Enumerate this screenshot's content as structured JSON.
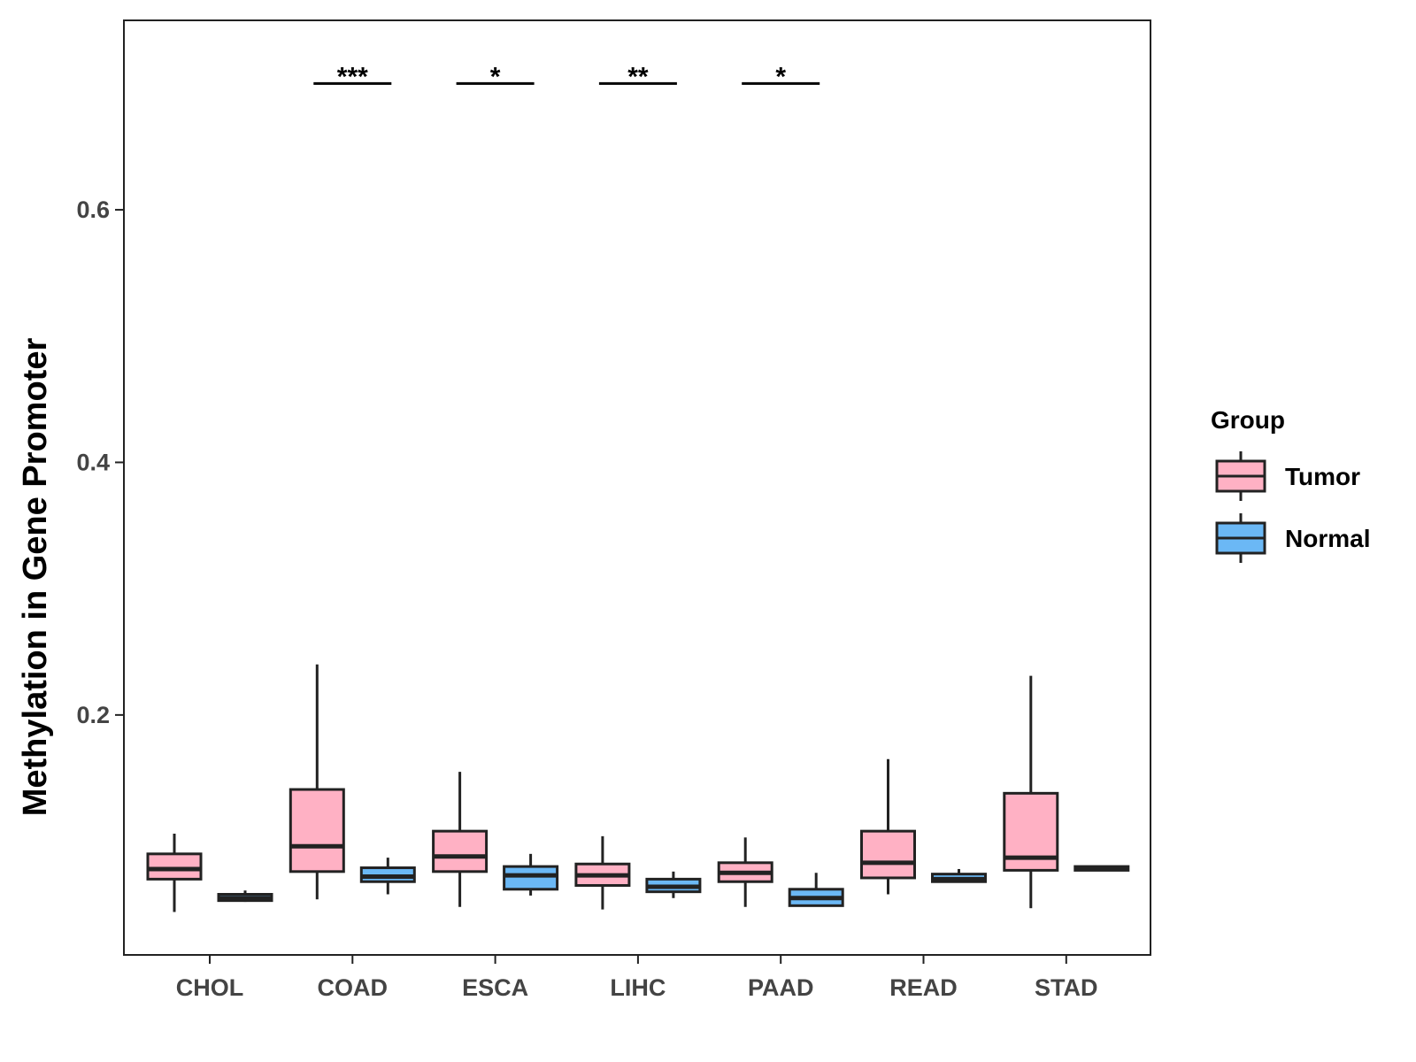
{
  "chart_data": {
    "type": "boxplot",
    "title": "",
    "xlabel": "",
    "ylabel": "Methylation in Gene Promoter",
    "ylim": [
      0.01,
      0.75
    ],
    "yticks": [
      0.2,
      0.4,
      0.6
    ],
    "ytick_labels": [
      "0.2",
      "0.4",
      "0.6"
    ],
    "grid": false,
    "legend": {
      "title": "Group",
      "position": "right",
      "entries": [
        {
          "name": "Tumor",
          "color": "#FFB1C4"
        },
        {
          "name": "Normal",
          "color": "#6BB8F5"
        }
      ]
    },
    "categories": [
      "CHOL",
      "COAD",
      "ESCA",
      "LIHC",
      "PAAD",
      "READ",
      "STAD"
    ],
    "series": [
      {
        "name": "Tumor",
        "color": "#FFB1C4",
        "boxes": [
          {
            "min": 0.044,
            "q1": 0.07,
            "median": 0.078,
            "q3": 0.09,
            "max": 0.106
          },
          {
            "min": 0.054,
            "q1": 0.076,
            "median": 0.096,
            "q3": 0.141,
            "max": 0.24
          },
          {
            "min": 0.048,
            "q1": 0.076,
            "median": 0.088,
            "q3": 0.108,
            "max": 0.155
          },
          {
            "min": 0.046,
            "q1": 0.065,
            "median": 0.073,
            "q3": 0.082,
            "max": 0.104
          },
          {
            "min": 0.048,
            "q1": 0.068,
            "median": 0.075,
            "q3": 0.083,
            "max": 0.103
          },
          {
            "min": 0.058,
            "q1": 0.071,
            "median": 0.083,
            "q3": 0.108,
            "max": 0.165
          },
          {
            "min": 0.047,
            "q1": 0.077,
            "median": 0.087,
            "q3": 0.138,
            "max": 0.231
          }
        ]
      },
      {
        "name": "Normal",
        "color": "#6BB8F5",
        "boxes": [
          {
            "min": 0.052,
            "q1": 0.053,
            "median": 0.055,
            "q3": 0.058,
            "max": 0.061
          },
          {
            "min": 0.058,
            "q1": 0.068,
            "median": 0.072,
            "q3": 0.079,
            "max": 0.087
          },
          {
            "min": 0.057,
            "q1": 0.062,
            "median": 0.073,
            "q3": 0.08,
            "max": 0.09
          },
          {
            "min": 0.055,
            "q1": 0.06,
            "median": 0.064,
            "q3": 0.07,
            "max": 0.076
          },
          {
            "min": 0.049,
            "q1": 0.049,
            "median": 0.055,
            "q3": 0.062,
            "max": 0.075
          },
          {
            "min": 0.068,
            "q1": 0.068,
            "median": 0.07,
            "q3": 0.074,
            "max": 0.078
          },
          {
            "min": 0.077,
            "q1": 0.077,
            "median": 0.078,
            "q3": 0.08,
            "max": 0.08
          }
        ]
      }
    ],
    "annotations": [
      {
        "category": "COAD",
        "label": "***",
        "y": 0.7
      },
      {
        "category": "ESCA",
        "label": "*",
        "y": 0.7
      },
      {
        "category": "LIHC",
        "label": "**",
        "y": 0.7
      },
      {
        "category": "PAAD",
        "label": "*",
        "y": 0.7
      }
    ]
  }
}
